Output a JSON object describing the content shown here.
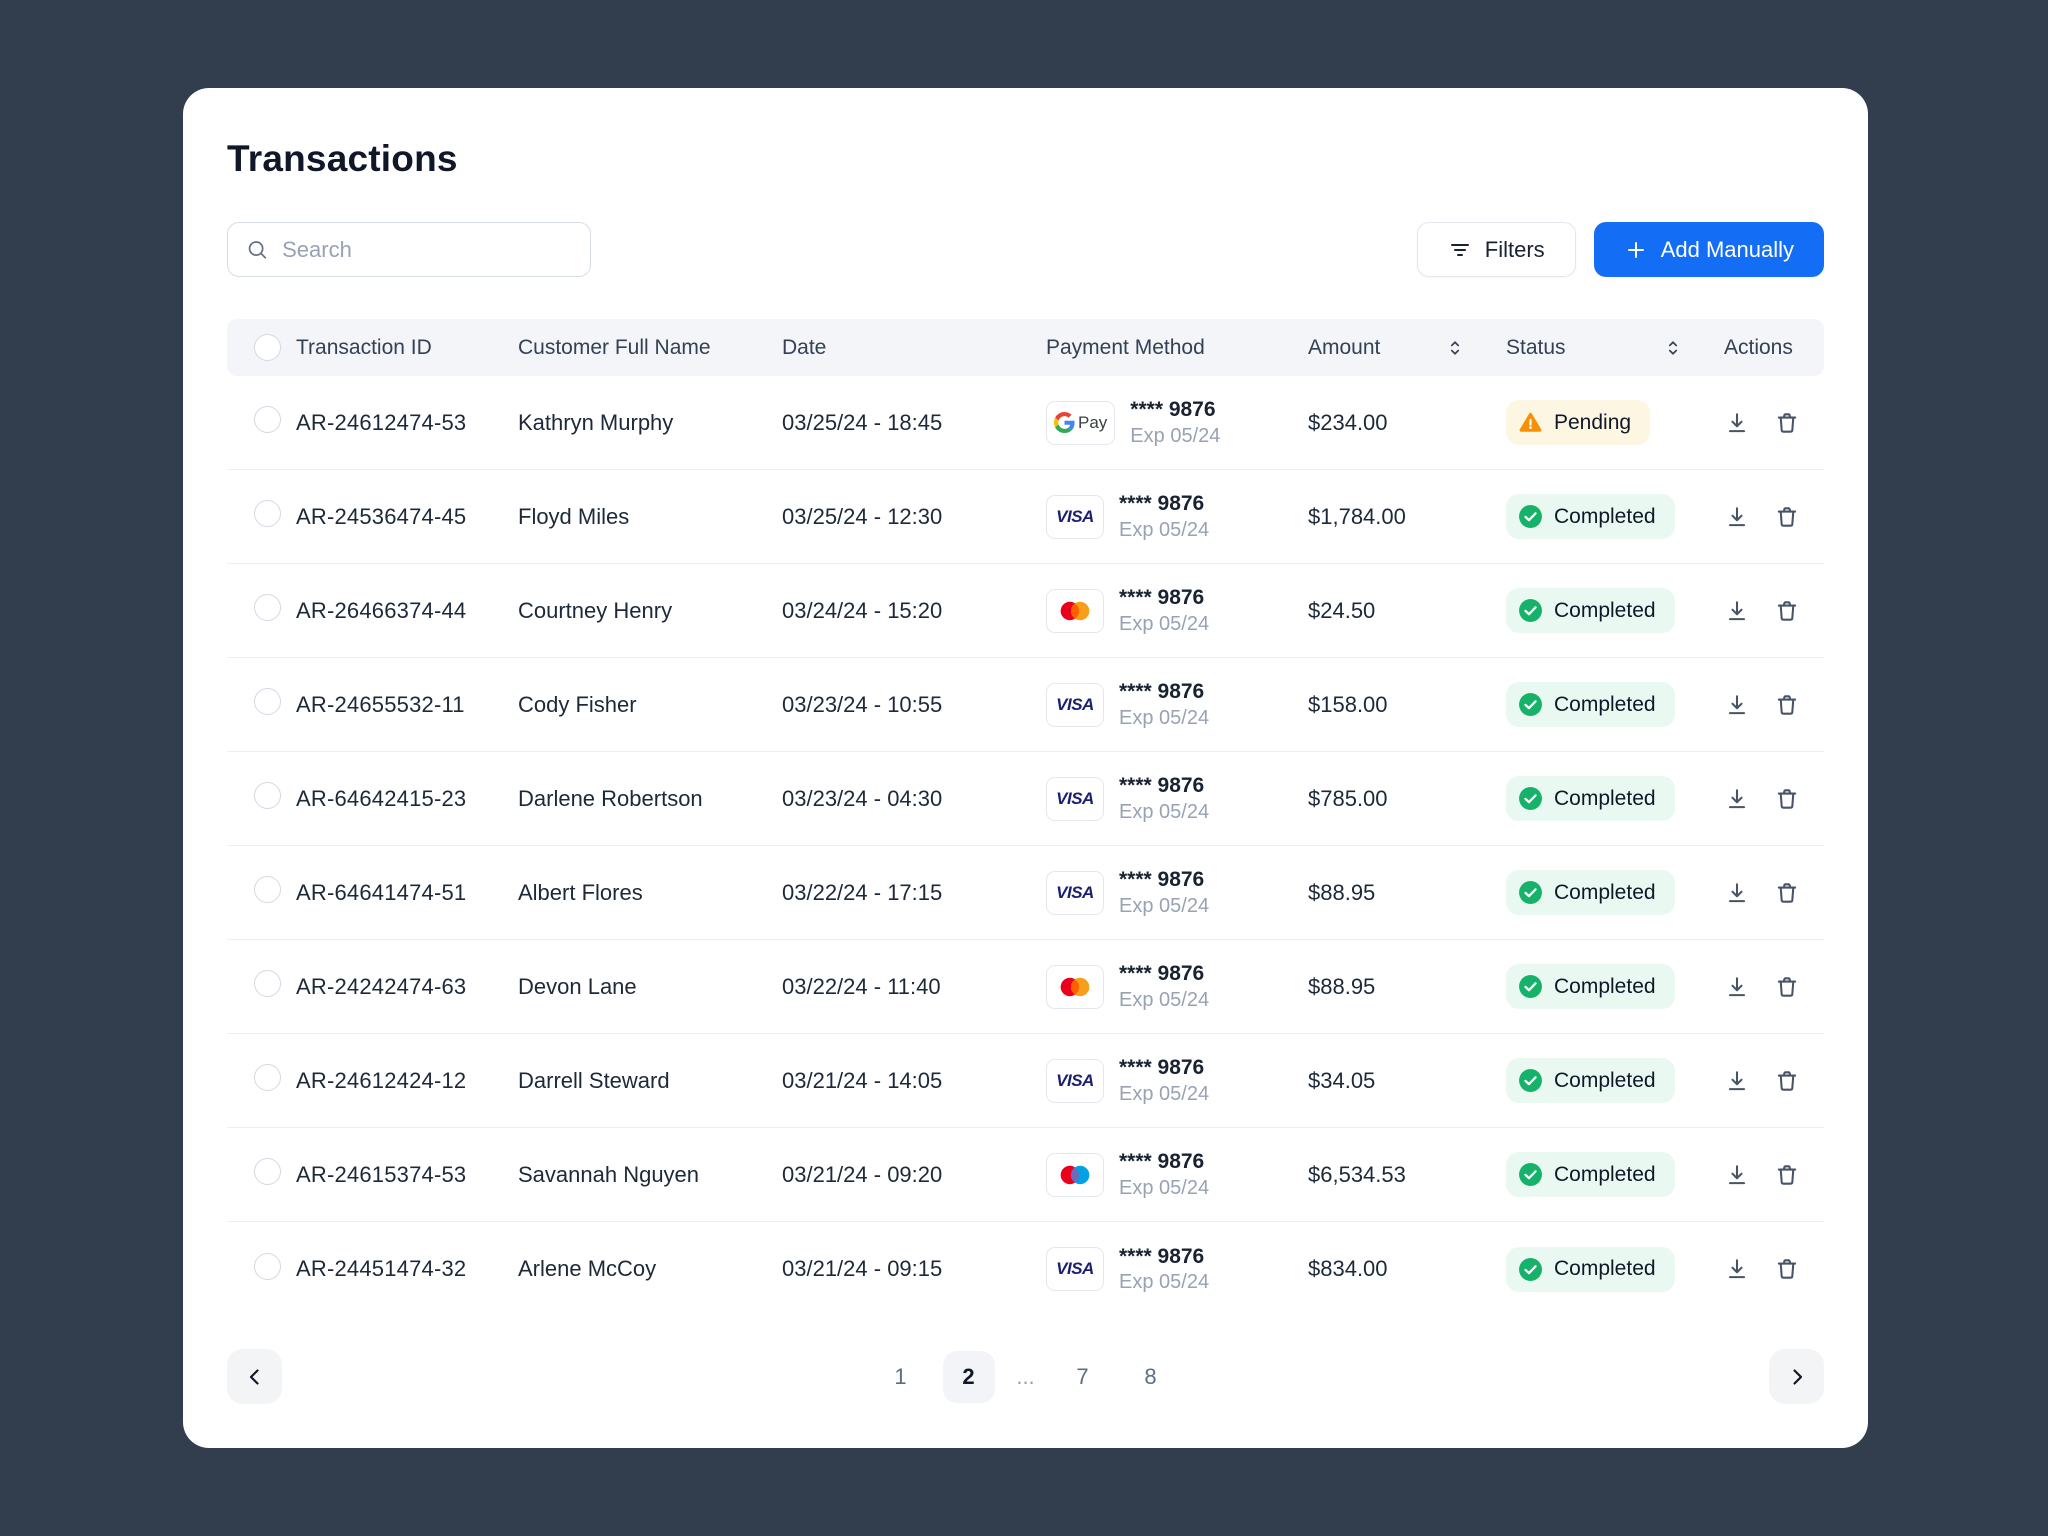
{
  "page": {
    "title": "Transactions"
  },
  "toolbar": {
    "search_placeholder": "Search",
    "filters_label": "Filters",
    "add_label": "Add Manually"
  },
  "table": {
    "columns": [
      "Transaction ID",
      "Customer Full Name",
      "Date",
      "Payment Method",
      "Amount",
      "Status",
      "Actions"
    ],
    "sortable_columns": [
      "Amount",
      "Status"
    ],
    "rows": [
      {
        "id": "AR-24612474-53",
        "customer": "Kathryn Murphy",
        "date": "03/25/24 - 18:45",
        "method": "gpay",
        "card": "**** 9876",
        "expiry": "Exp 05/24",
        "amount": "$234.00",
        "status": "Pending"
      },
      {
        "id": "AR-24536474-45",
        "customer": "Floyd Miles",
        "date": "03/25/24 - 12:30",
        "method": "visa",
        "card": "**** 9876",
        "expiry": "Exp 05/24",
        "amount": "$1,784.00",
        "status": "Completed"
      },
      {
        "id": "AR-26466374-44",
        "customer": "Courtney Henry",
        "date": "03/24/24 - 15:20",
        "method": "mastercard",
        "card": "**** 9876",
        "expiry": "Exp 05/24",
        "amount": "$24.50",
        "status": "Completed"
      },
      {
        "id": "AR-24655532-11",
        "customer": "Cody Fisher",
        "date": "03/23/24 - 10:55",
        "method": "visa",
        "card": "**** 9876",
        "expiry": "Exp 05/24",
        "amount": "$158.00",
        "status": "Completed"
      },
      {
        "id": "AR-64642415-23",
        "customer": "Darlene Robertson",
        "date": "03/23/24 - 04:30",
        "method": "visa",
        "card": "**** 9876",
        "expiry": "Exp 05/24",
        "amount": "$785.00",
        "status": "Completed"
      },
      {
        "id": "AR-64641474-51",
        "customer": "Albert Flores",
        "date": "03/22/24 - 17:15",
        "method": "visa",
        "card": "**** 9876",
        "expiry": "Exp 05/24",
        "amount": "$88.95",
        "status": "Completed"
      },
      {
        "id": "AR-24242474-63",
        "customer": "Devon Lane",
        "date": "03/22/24 - 11:40",
        "method": "mastercard",
        "card": "**** 9876",
        "expiry": "Exp 05/24",
        "amount": "$88.95",
        "status": "Completed"
      },
      {
        "id": "AR-24612424-12",
        "customer": "Darrell Steward",
        "date": "03/21/24 - 14:05",
        "method": "visa",
        "card": "**** 9876",
        "expiry": "Exp 05/24",
        "amount": "$34.05",
        "status": "Completed"
      },
      {
        "id": "AR-24615374-53",
        "customer": "Savannah Nguyen",
        "date": "03/21/24 - 09:20",
        "method": "maestro",
        "card": "**** 9876",
        "expiry": "Exp 05/24",
        "amount": "$6,534.53",
        "status": "Completed"
      },
      {
        "id": "AR-24451474-32",
        "customer": "Arlene McCoy",
        "date": "03/21/24 - 09:15",
        "method": "visa",
        "card": "**** 9876",
        "expiry": "Exp 05/24",
        "amount": "$834.00",
        "status": "Completed"
      }
    ]
  },
  "pagination": {
    "pages": [
      "1",
      "2",
      "...",
      "7",
      "8"
    ],
    "active": "2"
  },
  "icons": [
    "search-icon",
    "filter-icon",
    "plus-icon",
    "sort-icon",
    "gpay-icon",
    "visa-icon",
    "mastercard-icon",
    "maestro-icon",
    "check-circle-icon",
    "warning-triangle-icon",
    "download-icon",
    "trash-icon",
    "chevron-left-icon",
    "chevron-right-icon"
  ],
  "colors": {
    "background": "#323D4E",
    "accent_blue": "#146EF5",
    "success_green": "#17B26A",
    "warning_orange": "#F79009",
    "completed_badge_bg": "#E9F9F1",
    "pending_badge_bg": "#FDF6E2"
  }
}
